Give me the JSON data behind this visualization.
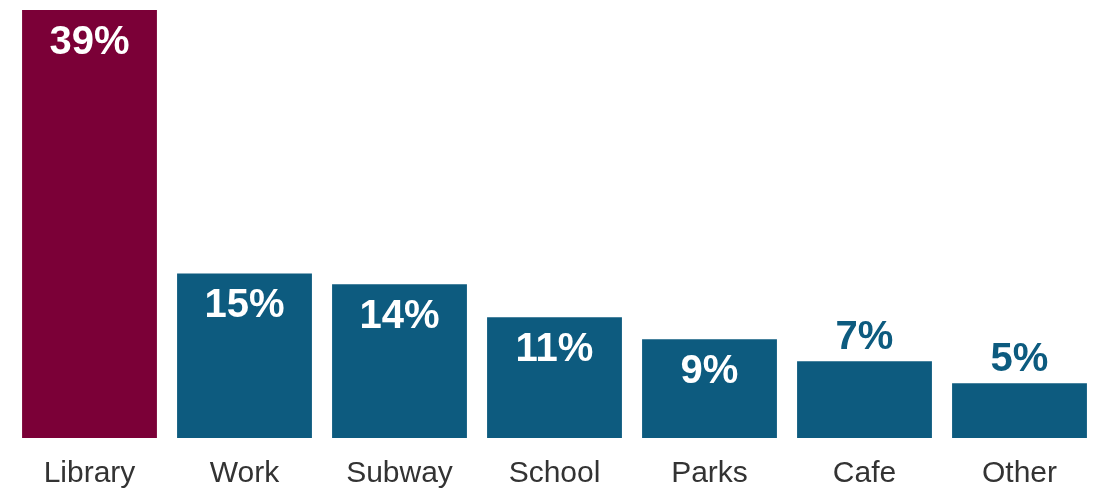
{
  "chart_data": {
    "type": "bar",
    "categories": [
      "Library",
      "Work",
      "Subway",
      "School",
      "Parks",
      "Cafe",
      "Other"
    ],
    "values": [
      39,
      15,
      14,
      11,
      9,
      7,
      5
    ],
    "colors": [
      "#7b0037",
      "#0d5b7f",
      "#0d5b7f",
      "#0d5b7f",
      "#0d5b7f",
      "#0d5b7f",
      "#0d5b7f"
    ],
    "value_labels": [
      "39%",
      "15%",
      "14%",
      "11%",
      "9%",
      "7%",
      "5%"
    ]
  }
}
